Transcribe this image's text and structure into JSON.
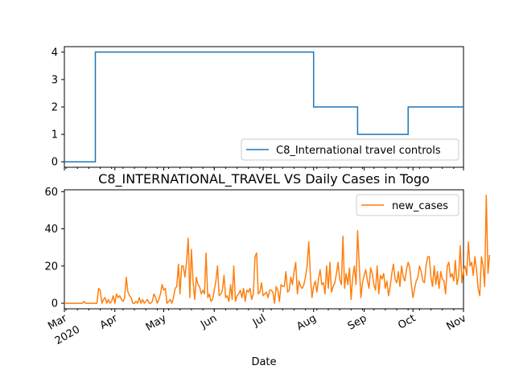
{
  "chart_data": [
    {
      "type": "line",
      "title": "",
      "xlabel": "",
      "ylabel": "",
      "yticks": [
        0,
        1,
        2,
        3,
        4
      ],
      "ylim": [
        -0.2,
        4.2
      ],
      "xlim": [
        "2020-03-01",
        "2020-11-01"
      ],
      "grid": false,
      "legend_position": "lower-right",
      "series": [
        {
          "name": "C8_International travel controls",
          "color": "#1f77b4",
          "steps": [
            {
              "from": "2020-03-01",
              "value": 0
            },
            {
              "from": "2020-03-20",
              "value": 4
            },
            {
              "from": "2020-08-01",
              "value": 2
            },
            {
              "from": "2020-08-28",
              "value": 1
            },
            {
              "from": "2020-09-28",
              "value": 2
            },
            {
              "until": "2020-11-01"
            }
          ]
        }
      ]
    },
    {
      "type": "line",
      "title": "C8_INTERNATIONAL_TRAVEL VS Daily Cases in Togo",
      "xlabel": "Date",
      "ylabel": "",
      "yticks": [
        0,
        20,
        40,
        60
      ],
      "ylim": [
        -3,
        61
      ],
      "xlim": [
        "2020-03-01",
        "2020-11-01"
      ],
      "grid": false,
      "legend_position": "upper-right",
      "series": [
        {
          "name": "new_cases",
          "color": "#ff7f0e",
          "start_date": "2020-03-01",
          "values": [
            0,
            0,
            0,
            0,
            0,
            0,
            0,
            0,
            0,
            0,
            0,
            0,
            1,
            0,
            0,
            0,
            0,
            0,
            0,
            0,
            0,
            8,
            7,
            0,
            2,
            3,
            0,
            2,
            0,
            1,
            4,
            0,
            5,
            3,
            4,
            2,
            1,
            3,
            14,
            6,
            4,
            3,
            0,
            0,
            1,
            0,
            3,
            0,
            2,
            0,
            1,
            2,
            0,
            0,
            1,
            5,
            3,
            0,
            2,
            5,
            10,
            7,
            8,
            0,
            1,
            2,
            0,
            3,
            8,
            9,
            21,
            5,
            20,
            20,
            14,
            22,
            35,
            3,
            29,
            12,
            2,
            14,
            10,
            9,
            5,
            7,
            5,
            27,
            3,
            5,
            1,
            2,
            7,
            12,
            20,
            4,
            5,
            7,
            15,
            3,
            4,
            1,
            10,
            2,
            20,
            1,
            4,
            5,
            7,
            3,
            8,
            1,
            7,
            6,
            8,
            2,
            5,
            25,
            27,
            5,
            6,
            11,
            4,
            5,
            6,
            3,
            7,
            7,
            6,
            0,
            9,
            7,
            1,
            10,
            9,
            9,
            17,
            6,
            7,
            14,
            10,
            17,
            22,
            5,
            12,
            9,
            8,
            10,
            14,
            20,
            33,
            15,
            3,
            9,
            12,
            6,
            13,
            18,
            10,
            11,
            5,
            20,
            8,
            22,
            6,
            9,
            11,
            16,
            22,
            13,
            10,
            36,
            8,
            16,
            10,
            19,
            2,
            14,
            20,
            10,
            39,
            21,
            3,
            11,
            15,
            18,
            12,
            8,
            19,
            16,
            10,
            7,
            20,
            5,
            15,
            13,
            16,
            8,
            12,
            4,
            9,
            16,
            21,
            13,
            11,
            17,
            9,
            20,
            14,
            12,
            18,
            22,
            19,
            10,
            3,
            8,
            12,
            14,
            20,
            17,
            12,
            11,
            20,
            25,
            25,
            14,
            9,
            20,
            10,
            17,
            8,
            17,
            13,
            12,
            5,
            20,
            22,
            14,
            16,
            12,
            23,
            10,
            14,
            31,
            11,
            18,
            20,
            15,
            33,
            20,
            22,
            15,
            25,
            18,
            8,
            4,
            25,
            20,
            9,
            58,
            16,
            26
          ]
        }
      ]
    }
  ],
  "x_axis": {
    "month_ticks": [
      "Mar",
      "Apr",
      "May",
      "Jun",
      "Jul",
      "Aug",
      "Sep",
      "Oct",
      "Nov"
    ],
    "year_label": "2020"
  }
}
